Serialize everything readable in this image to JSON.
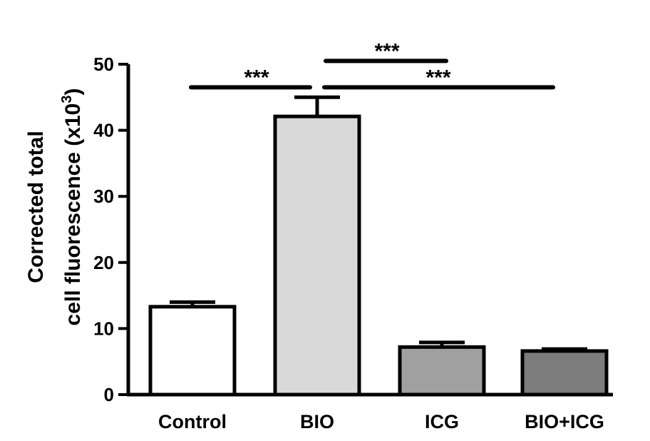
{
  "chart_data": {
    "type": "bar",
    "title": "",
    "xlabel": "",
    "ylabel": {
      "line1": "Corrected total",
      "line2_prefix": "cell fluorescence (x10",
      "line2_sup": "3",
      "line2_suffix": ")"
    },
    "ylim": [
      0,
      50
    ],
    "yticks": [
      0,
      10,
      20,
      30,
      40,
      50
    ],
    "grid": false,
    "legend": "none",
    "categories": [
      "Control",
      "BIO",
      "ICG",
      "BIO+ICG"
    ],
    "values": [
      13.3,
      42.1,
      7.2,
      6.6
    ],
    "errors": [
      0.7,
      2.9,
      0.7,
      0.3
    ],
    "colors": [
      "#ffffff",
      "#d9d9d9",
      "#a0a0a0",
      "#7c7c7c"
    ],
    "significance": [
      {
        "from": 0,
        "to": 1,
        "label": "***",
        "y": 46.5
      },
      {
        "from": 1,
        "to": 2,
        "label": "***",
        "y": 50.5
      },
      {
        "from": 1,
        "to": 3,
        "label": "***",
        "y": 46.5
      }
    ]
  }
}
